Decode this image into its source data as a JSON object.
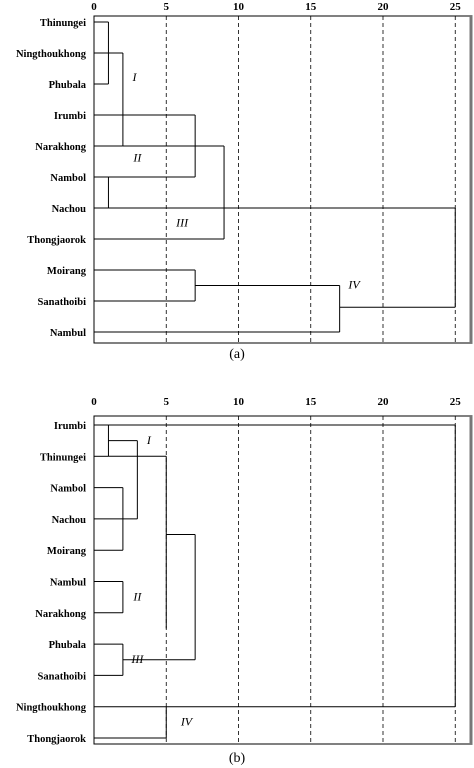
{
  "panels": [
    {
      "id": "a",
      "caption": "(a)",
      "axis_ticks": [
        0,
        5,
        10,
        15,
        20,
        25
      ],
      "leaves": [
        "Thinungei",
        "Ningthoukhong",
        "Phubala",
        "Irumbi",
        "Narakhong",
        "Nambol",
        "Nachou",
        "Thongjaorok",
        "Moirang",
        "Sanathoibi",
        "Nambul"
      ],
      "merges": [
        {
          "rows": [
            0,
            2
          ],
          "x": 1
        },
        {
          "rows": [
            5,
            6
          ],
          "x": 1
        },
        {
          "rows": [
            1,
            4
          ],
          "x": 2
        },
        {
          "rows": [
            3,
            5
          ],
          "x": 7
        },
        {
          "rows": [
            4,
            7
          ],
          "x": 9
        },
        {
          "rows": [
            8,
            9
          ],
          "x": 7
        },
        {
          "rows": [
            8.5,
            10
          ],
          "x": 17
        },
        {
          "rows": [
            6,
            9.2
          ],
          "x": 25
        }
      ],
      "cluster_labels": [
        {
          "text": "I",
          "x": 2.8,
          "row": 1.9
        },
        {
          "text": "II",
          "x": 3,
          "row": 4.5
        },
        {
          "text": "III",
          "x": 6.1,
          "row": 6.6
        },
        {
          "text": "IV",
          "x": 18,
          "row": 8.6
        }
      ]
    },
    {
      "id": "b",
      "caption": "(b)",
      "axis_ticks": [
        0,
        5,
        10,
        15,
        20,
        25
      ],
      "leaves": [
        "Irumbi",
        "Thinungei",
        "Nambol",
        "Nachou",
        "Moirang",
        "Nambul",
        "Narakhong",
        "Phubala",
        "Sanathoibi",
        "Ningthoukhong",
        "Thongjaorok"
      ],
      "merges": [
        {
          "rows": [
            0,
            1
          ],
          "x": 1
        },
        {
          "rows": [
            0.5,
            3
          ],
          "x": 3
        },
        {
          "rows": [
            2,
            4
          ],
          "x": 2
        },
        {
          "rows": [
            5,
            6
          ],
          "x": 2
        },
        {
          "rows": [
            7,
            8
          ],
          "x": 2
        },
        {
          "rows": [
            1,
            6.5
          ],
          "x": 5
        },
        {
          "rows": [
            3.5,
            7.5
          ],
          "x": 7
        },
        {
          "rows": [
            9,
            10
          ],
          "x": 5
        },
        {
          "rows": [
            0,
            9
          ],
          "x": 25
        }
      ],
      "cluster_labels": [
        {
          "text": "I",
          "x": 3.8,
          "row": 0.6
        },
        {
          "text": "II",
          "x": 3,
          "row": 5.6
        },
        {
          "text": "III",
          "x": 3,
          "row": 7.6
        },
        {
          "text": "IV",
          "x": 6.4,
          "row": 9.6
        }
      ]
    }
  ],
  "colors": {
    "line": "#000000",
    "grid": "#000000",
    "caption": "#000000"
  }
}
